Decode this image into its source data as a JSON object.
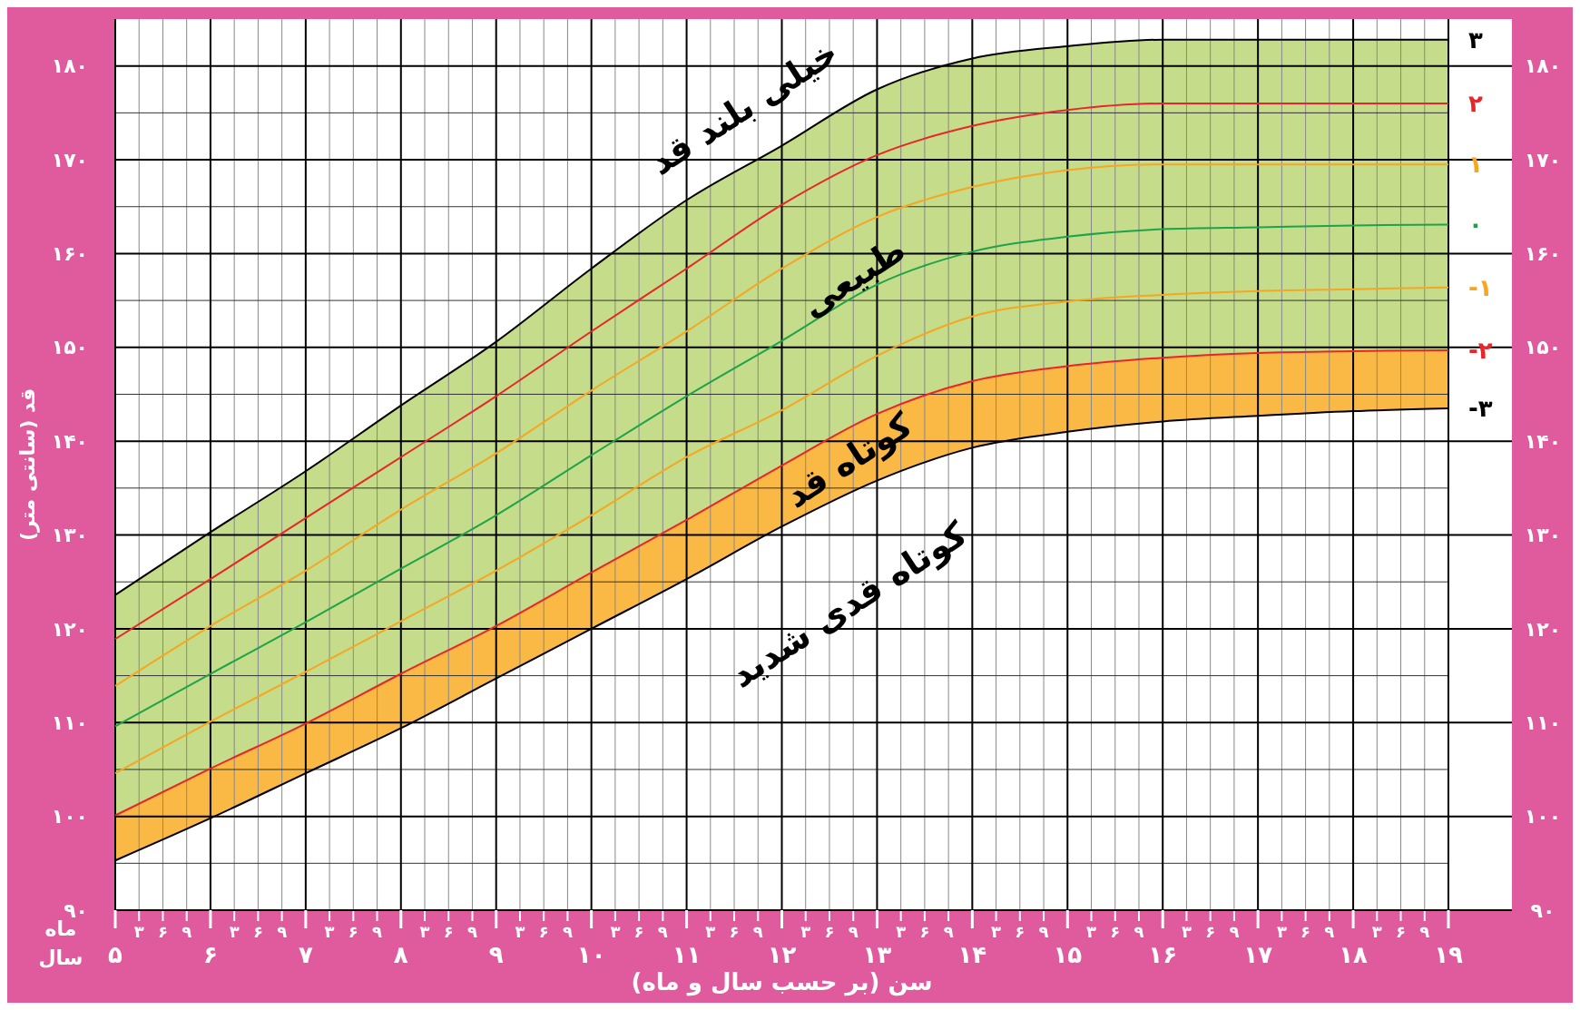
{
  "chart_data": {
    "type": "line",
    "xlabel": "سن (بر حسب سال و ماه)",
    "ylabel": "قد (سانتی متر)",
    "x": [
      5,
      6,
      7,
      8,
      9,
      10,
      11,
      12,
      13,
      14,
      15,
      16,
      17,
      18,
      19
    ],
    "xlim": [
      5,
      19
    ],
    "xticks": [
      {
        "value": 5,
        "label": "۵"
      },
      {
        "value": 6,
        "label": "۶"
      },
      {
        "value": 7,
        "label": "۷"
      },
      {
        "value": 8,
        "label": "۸"
      },
      {
        "value": 9,
        "label": "۹"
      },
      {
        "value": 10,
        "label": "۱۰"
      },
      {
        "value": 11,
        "label": "۱۱"
      },
      {
        "value": 12,
        "label": "۱۲"
      },
      {
        "value": 13,
        "label": "۱۳"
      },
      {
        "value": 14,
        "label": "۱۴"
      },
      {
        "value": 15,
        "label": "۱۵"
      },
      {
        "value": 16,
        "label": "۱۶"
      },
      {
        "value": 17,
        "label": "۱۷"
      },
      {
        "value": 18,
        "label": "۱۸"
      },
      {
        "value": 19,
        "label": "۱۹"
      }
    ],
    "ylim": [
      90,
      185
    ],
    "yticks": [
      {
        "value": 90,
        "label": "۹۰"
      },
      {
        "value": 100,
        "label": "۱۰۰"
      },
      {
        "value": 110,
        "label": "۱۱۰"
      },
      {
        "value": 120,
        "label": "۱۲۰"
      },
      {
        "value": 130,
        "label": "۱۳۰"
      },
      {
        "value": 140,
        "label": "۱۴۰"
      },
      {
        "value": 150,
        "label": "۱۵۰"
      },
      {
        "value": 160,
        "label": "۱۶۰"
      },
      {
        "value": 170,
        "label": "۱۷۰"
      },
      {
        "value": 180,
        "label": "۱۸۰"
      }
    ],
    "y2lim": [
      90,
      185
    ],
    "y2ticks": [
      {
        "value": 90,
        "label": "۹۰"
      },
      {
        "value": 100,
        "label": "۱۰۰"
      },
      {
        "value": 110,
        "label": "۱۱۰"
      },
      {
        "value": 120,
        "label": "۱۲۰"
      },
      {
        "value": 130,
        "label": "۱۳۰"
      },
      {
        "value": 140,
        "label": "۱۴۰"
      },
      {
        "value": 150,
        "label": "۱۵۰"
      },
      {
        "value": 160,
        "label": "۱۶۰"
      },
      {
        "value": 170,
        "label": "۱۷۰"
      },
      {
        "value": 180,
        "label": "۱۸۰"
      }
    ],
    "grid": true,
    "series": [
      {
        "name": "۳",
        "color": "#000000",
        "values": [
          123.6,
          130.3,
          136.8,
          143.8,
          150.6,
          158.4,
          165.7,
          171.5,
          177.5,
          180.8,
          182.1,
          182.8,
          182.8,
          182.8,
          182.8
        ]
      },
      {
        "name": "۲",
        "color": "#e8262a",
        "values": [
          118.9,
          125.3,
          131.8,
          138.3,
          144.8,
          151.7,
          158.4,
          165.2,
          170.5,
          173.6,
          175.3,
          176.0,
          176.0,
          176.0,
          176.0
        ]
      },
      {
        "name": "۱",
        "color": "#f5a623",
        "values": [
          113.9,
          120.3,
          126.2,
          132.7,
          138.7,
          145.4,
          151.7,
          158.4,
          163.9,
          167.1,
          168.9,
          169.5,
          169.5,
          169.5,
          169.5
        ]
      },
      {
        "name": "۰",
        "color": "#1ea34a",
        "values": [
          109.6,
          115.2,
          120.7,
          126.4,
          132.1,
          138.5,
          144.8,
          150.7,
          156.7,
          160.2,
          161.8,
          162.6,
          162.8,
          163.0,
          163.1
        ],
        "lower": [
          100.1,
          105.1,
          109.9,
          115.2,
          120.3,
          126.0,
          131.6,
          137.4,
          142.9,
          146.4,
          148.0,
          148.9,
          149.4,
          149.6,
          149.7
        ],
        "upper": [
          123.6,
          130.3,
          136.8,
          143.8,
          150.6,
          158.4,
          165.7,
          171.5,
          177.5,
          180.8,
          182.1,
          182.8,
          182.8,
          182.8,
          182.8
        ]
      },
      {
        "name": "-۱",
        "color": "#f5a623",
        "values": [
          104.6,
          110.1,
          115.4,
          120.8,
          126.2,
          132.1,
          138.3,
          143.3,
          149.1,
          153.3,
          154.9,
          155.6,
          156.0,
          156.2,
          156.4
        ]
      },
      {
        "name": "-۲",
        "color": "#e8262a",
        "values": [
          100.1,
          105.1,
          109.9,
          115.2,
          120.3,
          126.0,
          131.6,
          137.4,
          142.9,
          146.4,
          148.0,
          148.9,
          149.4,
          149.6,
          149.7
        ],
        "lower": [
          95.3,
          99.8,
          104.6,
          109.4,
          114.7,
          120.0,
          125.3,
          130.9,
          135.8,
          139.3,
          141.0,
          142.1,
          142.7,
          143.2,
          143.5
        ],
        "upper": [
          100.1,
          105.1,
          109.9,
          115.2,
          120.3,
          126.0,
          131.6,
          137.4,
          142.9,
          146.4,
          148.0,
          148.9,
          149.4,
          149.6,
          149.7
        ]
      },
      {
        "name": "-۳",
        "color": "#000000",
        "values": [
          95.3,
          99.8,
          104.6,
          109.4,
          114.7,
          120.0,
          125.3,
          130.9,
          135.8,
          139.3,
          141.0,
          142.1,
          142.7,
          143.2,
          143.5
        ]
      }
    ],
    "annotations": [
      "خیلی بلند قد",
      "طبیعی",
      "کوتاه قد",
      "کوتاه قدی شدید",
      "ماه",
      "سال",
      "۳",
      "۶",
      "۹",
      "۳",
      "۶",
      "۹",
      "۳",
      "۶",
      "۹",
      "۳",
      "۶",
      "۹",
      "۳",
      "۶",
      "۹",
      "۳",
      "۶",
      "۹",
      "۳",
      "۶",
      "۹",
      "۳",
      "۶",
      "۹",
      "۳",
      "۶",
      "۹",
      "۳",
      "۶",
      "۹",
      "۳",
      "۶",
      "۹",
      "۳",
      "۶",
      "۹",
      "۳",
      "۶",
      "۹",
      "۳",
      "۶",
      "۹"
    ]
  }
}
